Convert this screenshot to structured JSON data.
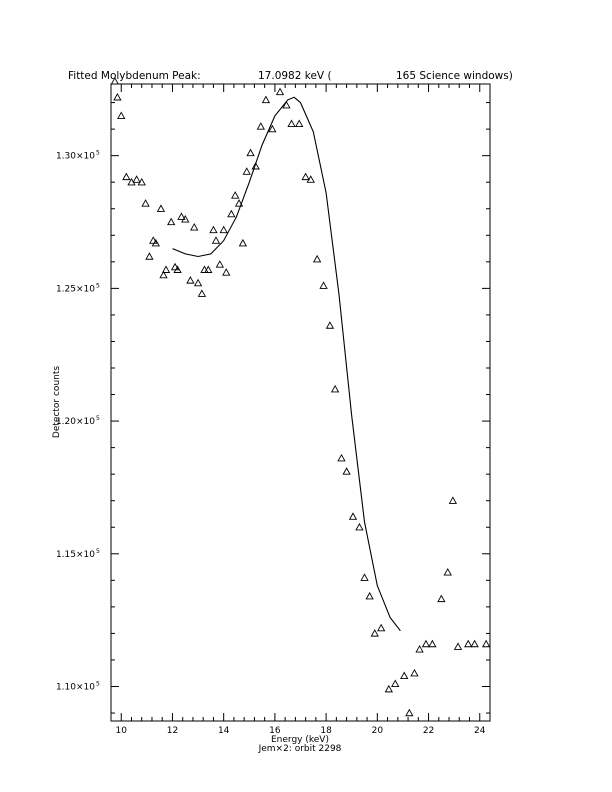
{
  "title": {
    "label": "Fitted Molybdenum Peak:",
    "value": "17.0982 keV (",
    "windows": "165 Science windows)"
  },
  "footer": "Jem×2: orbit 2298",
  "chart_data": {
    "type": "scatter",
    "xlabel": "Energy (keV)",
    "ylabel": "Detector counts",
    "xlim": [
      9.6,
      24.4
    ],
    "ylim": [
      108700,
      132700
    ],
    "x_ticks": [
      10,
      12,
      14,
      16,
      18,
      20,
      22,
      24
    ],
    "y_ticks": [
      {
        "value": 110000,
        "mantissa": "1.10×10",
        "exp": "5"
      },
      {
        "value": 115000,
        "mantissa": "1.15×10",
        "exp": "5"
      },
      {
        "value": 120000,
        "mantissa": "1.20×10",
        "exp": "5"
      },
      {
        "value": 125000,
        "mantissa": "1.25×10",
        "exp": "5"
      },
      {
        "value": 130000,
        "mantissa": "1.30×10",
        "exp": "5"
      }
    ],
    "series": [
      {
        "marker": "triangle",
        "x": [
          9.7,
          9.85,
          10.0,
          10.15,
          10.35,
          10.55,
          10.75,
          10.95,
          11.05,
          11.2,
          11.3,
          11.45,
          11.55,
          11.7,
          11.9,
          12.05,
          12.2,
          12.35,
          12.5,
          12.65,
          12.85,
          12.95,
          13.15,
          13.25,
          13.4,
          13.55,
          13.65,
          13.8,
          13.95,
          14.05,
          14.25,
          14.4,
          14.55,
          14.7,
          14.85,
          14.95,
          15.15,
          15.35,
          15.55,
          15.85,
          16.1,
          16.35,
          16.55,
          16.85,
          17.15,
          17.35,
          17.55,
          17.85,
          18.1,
          18.35,
          18.55,
          18.75,
          19.0,
          19.25,
          19.45,
          19.65,
          19.9,
          20.15,
          20.45,
          20.7,
          21.0,
          21.2,
          21.45,
          21.65,
          21.85,
          22.15,
          22.5,
          22.7,
          22.95,
          23.15,
          23.5,
          23.7,
          24.05
        ],
        "y": [
          132800,
          132200,
          131500,
          129200,
          129000,
          129100,
          129000,
          128200,
          126200,
          126800,
          126700,
          128000,
          125500,
          125700,
          127500,
          125800,
          125700,
          127700,
          127600,
          125300,
          127300,
          125200,
          124800,
          125700,
          125700,
          127200,
          126800,
          125900,
          127200,
          125600,
          127800,
          128500,
          128200,
          126700,
          129400,
          130000,
          129600,
          131000,
          132100,
          131000,
          132400,
          131900,
          131200,
          131200,
          129200,
          129100,
          126100,
          125100,
          123600,
          121200,
          118600,
          118100,
          116400,
          116000,
          114100,
          113400,
          112000,
          112200,
          109900,
          110100,
          110400,
          109000,
          110500,
          111400,
          111600,
          111600,
          113300,
          114300,
          117000,
          111500,
          111600,
          111600,
          111600
        ],
        "x_fixed": [
          9.75,
          9.85,
          10.0,
          10.2,
          10.4,
          10.6,
          10.8,
          10.95,
          11.1,
          11.25,
          11.35,
          11.55,
          11.65,
          11.75,
          11.95,
          12.1,
          12.2,
          12.35,
          12.5,
          12.7,
          12.85,
          13.0,
          13.15,
          13.25,
          13.4,
          13.6,
          13.7,
          13.85,
          14.0,
          14.1,
          14.3,
          14.45,
          14.6,
          14.75,
          14.9,
          15.05,
          15.25,
          15.45,
          15.65,
          15.9,
          16.2,
          16.45,
          16.65,
          16.95,
          17.2,
          17.4,
          17.65,
          17.9,
          18.15,
          18.35,
          18.6,
          18.8,
          19.05,
          19.3,
          19.5,
          19.7,
          19.9,
          20.15,
          20.45,
          20.7,
          21.05,
          21.25,
          21.45,
          21.65,
          21.9,
          22.15,
          22.5,
          22.75,
          22.95,
          23.15,
          23.55,
          23.8,
          24.25
        ],
        "y_fixed": [
          132800,
          132200,
          131500,
          129200,
          129000,
          129100,
          129000,
          128200,
          126200,
          126800,
          126700,
          128000,
          125500,
          125700,
          127500,
          125800,
          125700,
          127700,
          127600,
          125300,
          127300,
          125200,
          124800,
          125700,
          125700,
          127200,
          126800,
          125900,
          127200,
          125600,
          127800,
          128500,
          128200,
          126700,
          129400,
          130100,
          129600,
          131100,
          132100,
          131000,
          132400,
          131900,
          131200,
          131200,
          129200,
          129100,
          126100,
          125100,
          123600,
          121200,
          118600,
          118100,
          116400,
          116000,
          114100,
          113400,
          112000,
          112200,
          109900,
          110100,
          110400,
          109000,
          110500,
          111400,
          111600,
          111600,
          113300,
          114300,
          117000,
          111500,
          111600,
          111600,
          111600
        ]
      },
      {
        "marker": "line",
        "x": [
          12.0,
          12.5,
          13.0,
          13.5,
          14.0,
          14.5,
          15.0,
          15.5,
          16.0,
          16.5,
          16.75,
          17.0,
          17.5,
          18.0,
          18.5,
          19.0,
          19.5,
          20.0,
          20.5,
          20.9
        ],
        "y": [
          126500,
          126300,
          126200,
          126300,
          126800,
          127700,
          129000,
          130400,
          131500,
          132100,
          132200,
          132000,
          130900,
          128600,
          124800,
          120200,
          116200,
          113800,
          112600,
          112100
        ]
      }
    ]
  }
}
